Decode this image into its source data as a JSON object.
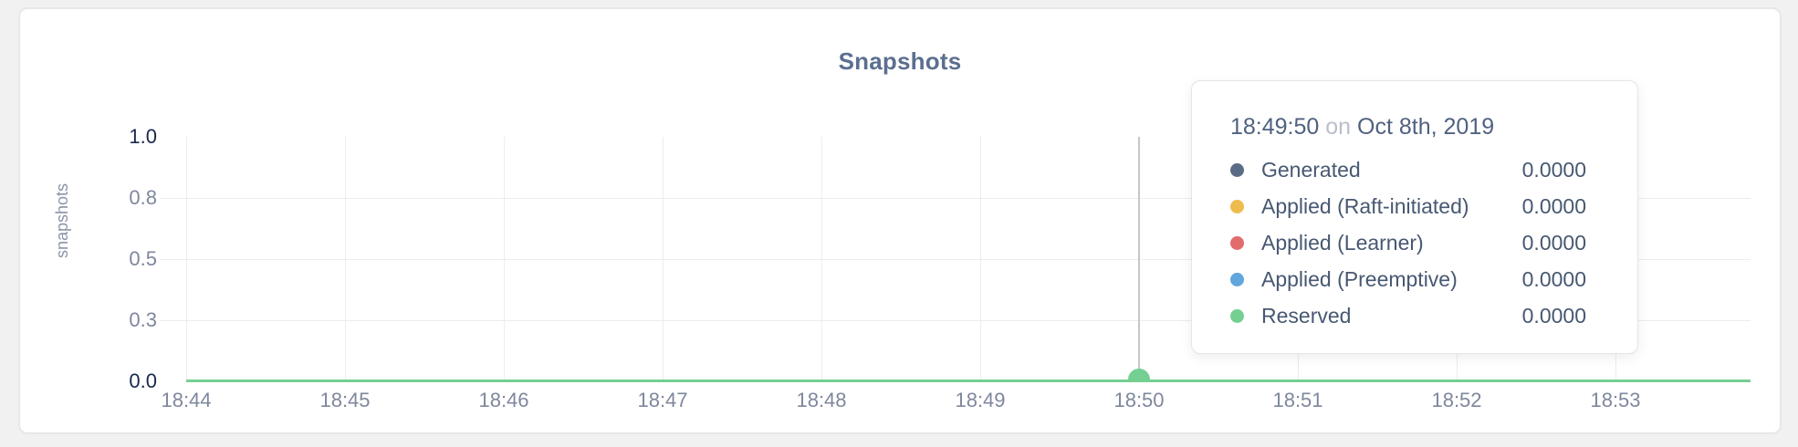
{
  "chart_data": {
    "type": "line",
    "title": "Snapshots",
    "xlabel": "",
    "ylabel": "snapshots",
    "ylim": [
      0,
      1.0
    ],
    "grid": true,
    "legend_position": "tooltip",
    "x_ticks": [
      "18:44",
      "18:45",
      "18:46",
      "18:47",
      "18:48",
      "18:49",
      "18:50",
      "18:51",
      "18:52",
      "18:53"
    ],
    "y_ticks": [
      {
        "label": "1.0",
        "value": 1.0,
        "emphasis": true,
        "gridline": false
      },
      {
        "label": "0.8",
        "value": 0.75,
        "emphasis": false,
        "gridline": true
      },
      {
        "label": "0.5",
        "value": 0.5,
        "emphasis": false,
        "gridline": true
      },
      {
        "label": "0.3",
        "value": 0.25,
        "emphasis": false,
        "gridline": true
      },
      {
        "label": "0.0",
        "value": 0.0,
        "emphasis": true,
        "gridline": false
      }
    ],
    "series": [
      {
        "name": "Generated",
        "color": "#5b6c87",
        "values": [
          0,
          0,
          0,
          0,
          0,
          0,
          0,
          0,
          0,
          0
        ]
      },
      {
        "name": "Applied (Raft-initiated)",
        "color": "#eebc4e",
        "values": [
          0,
          0,
          0,
          0,
          0,
          0,
          0,
          0,
          0,
          0
        ]
      },
      {
        "name": "Applied (Learner)",
        "color": "#e26b6b",
        "values": [
          0,
          0,
          0,
          0,
          0,
          0,
          0,
          0,
          0,
          0
        ]
      },
      {
        "name": "Applied (Preemptive)",
        "color": "#61a6dc",
        "values": [
          0,
          0,
          0,
          0,
          0,
          0,
          0,
          0,
          0,
          0
        ]
      },
      {
        "name": "Reserved",
        "color": "#74d092",
        "values": [
          0,
          0,
          0,
          0,
          0,
          0,
          0,
          0,
          0,
          0
        ]
      }
    ],
    "hover": {
      "x_tick": "18:50",
      "marker_color": "#74d092"
    }
  },
  "tooltip": {
    "time": "18:49:50",
    "conjunction": "on",
    "date": "Oct 8th, 2019",
    "rows": [
      {
        "label": "Generated",
        "color": "#5b6c87",
        "value": "0.0000"
      },
      {
        "label": "Applied (Raft-initiated)",
        "color": "#eebc4e",
        "value": "0.0000"
      },
      {
        "label": "Applied (Learner)",
        "color": "#e26b6b",
        "value": "0.0000"
      },
      {
        "label": "Applied (Preemptive)",
        "color": "#61a6dc",
        "value": "0.0000"
      },
      {
        "label": "Reserved",
        "color": "#74d092",
        "value": "0.0000"
      }
    ]
  }
}
